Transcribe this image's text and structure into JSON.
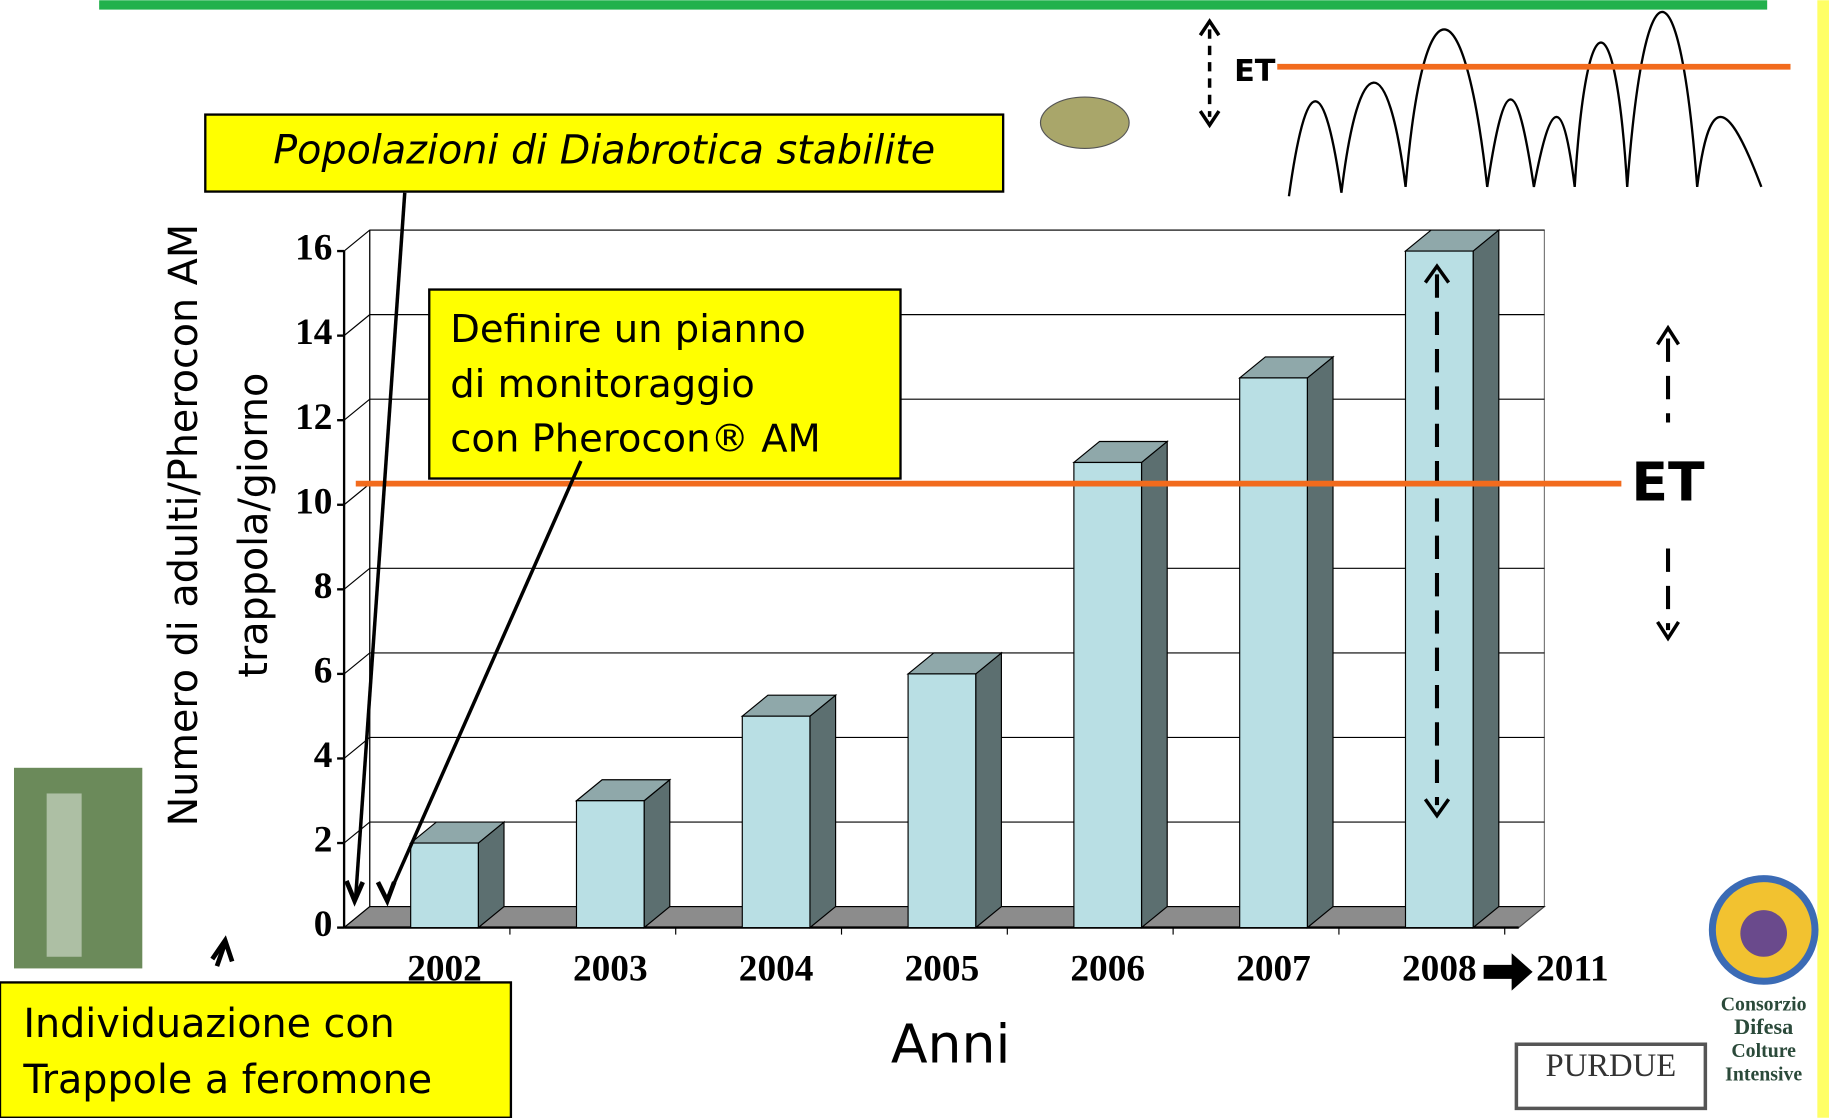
{
  "chart_data": {
    "type": "bar",
    "y_label_lines": [
      "Numero di adulti/Pherocon AM",
      "trappola/giorno"
    ],
    "x_label": "Anni",
    "categories": [
      "2002",
      "2003",
      "2004",
      "2005",
      "2006",
      "2007",
      "2008"
    ],
    "x_extension": "2011",
    "values": [
      2,
      3,
      5,
      6,
      11,
      13,
      16
    ],
    "ylim": [
      0,
      16
    ],
    "yticks": [
      0,
      2,
      4,
      6,
      8,
      10,
      12,
      14,
      16
    ],
    "grid": true,
    "threshold": {
      "value": 10.5,
      "label": "ET",
      "color": "#f26b1d"
    },
    "colors": {
      "front": "#b9dfe4",
      "side": "#5c6f70",
      "top": "#8fa8aa",
      "floor": "#8c8c8c"
    },
    "annotations": {
      "established": "Popolazioni di Diabrotica stabilite",
      "monitoring": [
        "Definire un pianno",
        "di monitoraggio",
        "con Pherocon® AM"
      ],
      "detection": [
        "Individuazione con",
        "Trappole a feromone"
      ],
      "sketch_label": "ET"
    },
    "logos": {
      "consorzio": [
        "Consorzio",
        "Difesa",
        "Colture",
        "Intensive"
      ],
      "purdue": "PURDUE"
    }
  }
}
